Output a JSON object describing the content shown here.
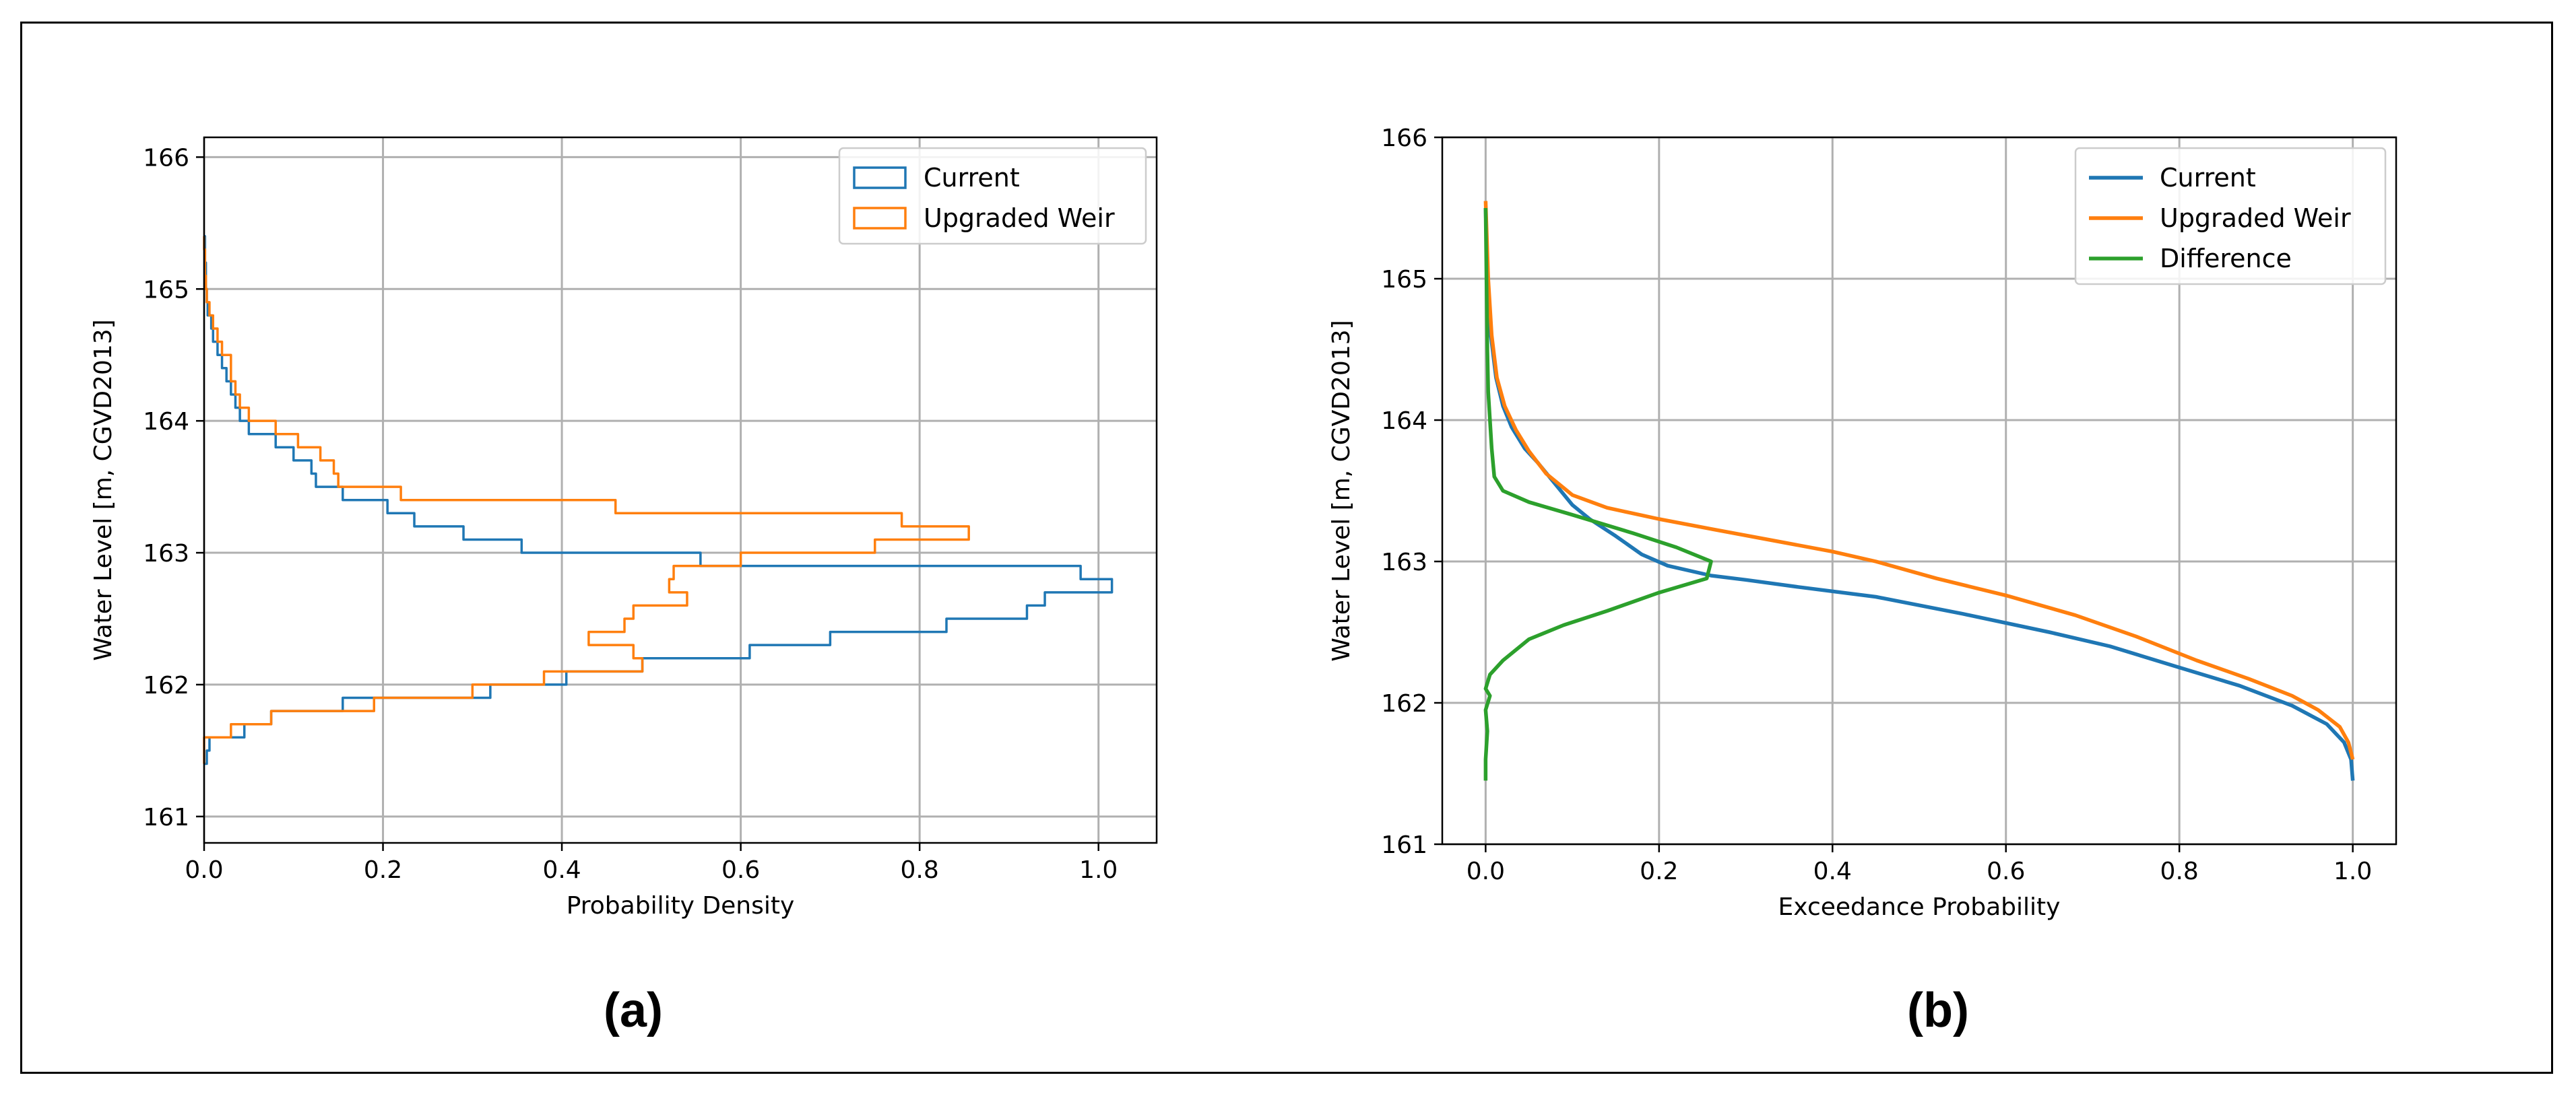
{
  "colors": {
    "current": "#1f77b4",
    "upgraded": "#ff7f0e",
    "difference": "#2ca02c"
  },
  "chart_data": [
    {
      "type": "histogram-step",
      "panel_label": "(a)",
      "xlabel": "Probability Density",
      "ylabel": "Water Level [m, CGVD2013]",
      "xlim": [
        0.0,
        1.065
      ],
      "ylim": [
        160.8,
        166.15
      ],
      "xticks": [
        0.0,
        0.2,
        0.4,
        0.6,
        0.8,
        1.0
      ],
      "xtick_labels": [
        "0.0",
        "0.2",
        "0.4",
        "0.6",
        "0.8",
        "1.0"
      ],
      "yticks": [
        161,
        162,
        163,
        164,
        165,
        166
      ],
      "ytick_labels": [
        "161",
        "162",
        "163",
        "164",
        "165",
        "166"
      ],
      "legend": {
        "position": "top-right",
        "style": "box",
        "entries": [
          "Current",
          "Upgraded Weir"
        ]
      },
      "series": [
        {
          "name": "Current",
          "bins": [
            161.4,
            161.5,
            161.6,
            161.7,
            161.8,
            161.9,
            162.0,
            162.1,
            162.2,
            162.3,
            162.4,
            162.5,
            162.6,
            162.7,
            162.8,
            162.9,
            163.0,
            163.1,
            163.2,
            163.3,
            163.4,
            163.5,
            163.6,
            163.7,
            163.8,
            163.9,
            164.0,
            164.1,
            164.2,
            164.3,
            164.4,
            164.5,
            164.6,
            164.7,
            164.8,
            164.9,
            165.0,
            165.1,
            165.2,
            165.3,
            165.4
          ],
          "values": [
            0.003,
            0.006,
            0.045,
            0.075,
            0.155,
            0.32,
            0.405,
            0.49,
            0.61,
            0.7,
            0.83,
            0.92,
            0.94,
            1.015,
            0.98,
            0.555,
            0.355,
            0.29,
            0.235,
            0.205,
            0.155,
            0.125,
            0.12,
            0.1,
            0.08,
            0.05,
            0.04,
            0.035,
            0.03,
            0.025,
            0.02,
            0.015,
            0.01,
            0.008,
            0.004,
            0.003,
            0.002,
            0.002,
            0.001,
            0.001
          ]
        },
        {
          "name": "Upgraded Weir",
          "bins": [
            161.4,
            161.5,
            161.6,
            161.7,
            161.8,
            161.9,
            162.0,
            162.1,
            162.2,
            162.3,
            162.4,
            162.5,
            162.6,
            162.7,
            162.8,
            162.9,
            163.0,
            163.1,
            163.2,
            163.3,
            163.4,
            163.5,
            163.6,
            163.7,
            163.8,
            163.9,
            164.0,
            164.1,
            164.2,
            164.3,
            164.4,
            164.5,
            164.6,
            164.7,
            164.8,
            164.9,
            165.0,
            165.1,
            165.2,
            165.3,
            165.4
          ],
          "values": [
            0.0,
            0.0,
            0.03,
            0.075,
            0.19,
            0.3,
            0.38,
            0.49,
            0.48,
            0.43,
            0.47,
            0.48,
            0.54,
            0.52,
            0.525,
            0.6,
            0.75,
            0.855,
            0.78,
            0.46,
            0.22,
            0.15,
            0.145,
            0.13,
            0.105,
            0.08,
            0.05,
            0.04,
            0.035,
            0.03,
            0.03,
            0.02,
            0.015,
            0.01,
            0.006,
            0.003,
            0.002,
            0.001,
            0.001,
            0.0
          ]
        }
      ]
    },
    {
      "type": "line",
      "panel_label": "(b)",
      "xlabel": "Exceedance Probability",
      "ylabel": "Water Level [m, CGVD2013]",
      "xlim": [
        -0.05,
        1.05
      ],
      "ylim": [
        161,
        166
      ],
      "xticks": [
        0.0,
        0.2,
        0.4,
        0.6,
        0.8,
        1.0
      ],
      "xtick_labels": [
        "0.0",
        "0.2",
        "0.4",
        "0.6",
        "0.8",
        "1.0"
      ],
      "yticks": [
        161,
        162,
        163,
        164,
        165,
        166
      ],
      "ytick_labels": [
        "161",
        "162",
        "163",
        "164",
        "165",
        "166"
      ],
      "legend": {
        "position": "top-right",
        "style": "line",
        "entries": [
          "Current",
          "Upgraded Weir",
          "Difference"
        ]
      },
      "series": [
        {
          "name": "Current",
          "points": [
            [
              0.0,
              165.5
            ],
            [
              0.002,
              165.0
            ],
            [
              0.006,
              164.6
            ],
            [
              0.012,
              164.3
            ],
            [
              0.02,
              164.1
            ],
            [
              0.03,
              163.95
            ],
            [
              0.045,
              163.8
            ],
            [
              0.06,
              163.7
            ],
            [
              0.08,
              163.55
            ],
            [
              0.1,
              163.4
            ],
            [
              0.12,
              163.3
            ],
            [
              0.15,
              163.18
            ],
            [
              0.18,
              163.05
            ],
            [
              0.21,
              162.97
            ],
            [
              0.26,
              162.9
            ],
            [
              0.3,
              162.87
            ],
            [
              0.36,
              162.82
            ],
            [
              0.45,
              162.75
            ],
            [
              0.55,
              162.63
            ],
            [
              0.65,
              162.5
            ],
            [
              0.72,
              162.4
            ],
            [
              0.8,
              162.25
            ],
            [
              0.87,
              162.12
            ],
            [
              0.93,
              161.98
            ],
            [
              0.97,
              161.85
            ],
            [
              0.99,
              161.72
            ],
            [
              0.998,
              161.6
            ],
            [
              1.0,
              161.45
            ]
          ]
        },
        {
          "name": "Upgraded Weir",
          "points": [
            [
              0.0,
              165.55
            ],
            [
              0.003,
              165.0
            ],
            [
              0.007,
              164.6
            ],
            [
              0.013,
              164.3
            ],
            [
              0.022,
              164.1
            ],
            [
              0.035,
              163.93
            ],
            [
              0.05,
              163.78
            ],
            [
              0.07,
              163.62
            ],
            [
              0.1,
              163.47
            ],
            [
              0.14,
              163.38
            ],
            [
              0.2,
              163.3
            ],
            [
              0.26,
              163.23
            ],
            [
              0.33,
              163.15
            ],
            [
              0.4,
              163.07
            ],
            [
              0.45,
              163.0
            ],
            [
              0.52,
              162.88
            ],
            [
              0.6,
              162.76
            ],
            [
              0.68,
              162.62
            ],
            [
              0.75,
              162.47
            ],
            [
              0.82,
              162.3
            ],
            [
              0.88,
              162.17
            ],
            [
              0.93,
              162.05
            ],
            [
              0.96,
              161.95
            ],
            [
              0.985,
              161.83
            ],
            [
              0.995,
              161.72
            ],
            [
              1.0,
              161.6
            ]
          ]
        },
        {
          "name": "Difference",
          "points": [
            [
              0.0,
              165.5
            ],
            [
              0.001,
              165.0
            ],
            [
              0.002,
              164.5
            ],
            [
              0.003,
              164.2
            ],
            [
              0.005,
              164.0
            ],
            [
              0.007,
              163.8
            ],
            [
              0.01,
              163.6
            ],
            [
              0.02,
              163.5
            ],
            [
              0.05,
              163.42
            ],
            [
              0.1,
              163.33
            ],
            [
              0.17,
              163.2
            ],
            [
              0.22,
              163.1
            ],
            [
              0.26,
              163.0
            ],
            [
              0.255,
              162.88
            ],
            [
              0.2,
              162.78
            ],
            [
              0.14,
              162.65
            ],
            [
              0.09,
              162.55
            ],
            [
              0.05,
              162.45
            ],
            [
              0.02,
              162.3
            ],
            [
              0.005,
              162.2
            ],
            [
              0.0,
              162.1
            ],
            [
              0.005,
              162.05
            ],
            [
              0.0,
              161.95
            ],
            [
              0.002,
              161.8
            ],
            [
              0.0,
              161.6
            ],
            [
              0.0,
              161.45
            ]
          ]
        }
      ]
    }
  ]
}
